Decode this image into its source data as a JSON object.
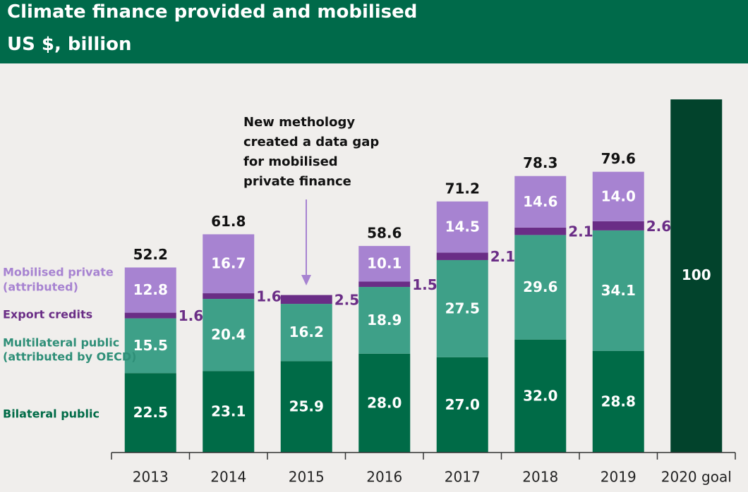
{
  "header": {
    "title": "Climate finance provided and mobilised",
    "subtitle": "US $, billion"
  },
  "annotation": {
    "lines": [
      "New methology",
      "created a data gap",
      "for mobilised",
      "private finance"
    ]
  },
  "colors": {
    "bilateral": "#006b47",
    "multilateral": "#3ea088",
    "export": "#6a2d86",
    "private": "#a783d1",
    "goal": "#02432c",
    "export_label": "#6a2d86",
    "private_legend": "#a783d1",
    "multilateral_legend": "#2f8f78",
    "bilateral_legend": "#006b47"
  },
  "chart_data": {
    "type": "bar",
    "stacked": true,
    "categories": [
      "2013",
      "2014",
      "2015",
      "2016",
      "2017",
      "2018",
      "2019",
      "2020 goal"
    ],
    "series": [
      {
        "name": "Bilateral public",
        "key": "bilateral",
        "values": [
          22.5,
          23.1,
          25.9,
          28.0,
          27.0,
          32.0,
          28.8,
          null
        ]
      },
      {
        "name": "Multilateral public (attributed by OECD)",
        "key": "multilateral",
        "values": [
          15.5,
          20.4,
          16.2,
          18.9,
          27.5,
          29.6,
          34.1,
          null
        ]
      },
      {
        "name": "Export credits",
        "key": "export",
        "values": [
          1.6,
          1.6,
          2.5,
          1.5,
          2.1,
          2.1,
          2.6,
          null
        ]
      },
      {
        "name": "Mobilised private (attributed)",
        "key": "private",
        "values": [
          12.8,
          16.7,
          null,
          10.1,
          14.5,
          14.6,
          14.0,
          null
        ]
      }
    ],
    "goal": {
      "category": "2020 goal",
      "value": 100
    },
    "totals": [
      52.2,
      61.8,
      null,
      58.6,
      71.2,
      78.3,
      79.6,
      null
    ],
    "value_labels": {
      "bilateral": [
        "22.5",
        "23.1",
        "25.9",
        "28.0",
        "27.0",
        "32.0",
        "28.8"
      ],
      "multilateral": [
        "15.5",
        "20.4",
        "16.2",
        "18.9",
        "27.5",
        "29.6",
        "34.1"
      ],
      "export": [
        "1.6",
        "1.6",
        "2.5",
        "1.5",
        "2.1",
        "2.1",
        "2.6"
      ],
      "private": [
        "12.8",
        "16.7",
        "",
        "10.1",
        "14.5",
        "14.6",
        "14.0"
      ],
      "totals": [
        "52.2",
        "61.8",
        "",
        "58.6",
        "71.2",
        "78.3",
        "79.6"
      ],
      "goal": "100"
    },
    "legend": [
      {
        "lines": [
          "Mobilised private",
          "(attributed)"
        ],
        "key": "private"
      },
      {
        "lines": [
          "Export credits"
        ],
        "key": "export"
      },
      {
        "lines": [
          "Multilateral public",
          "(attributed by OECD)"
        ],
        "key": "multilateral"
      },
      {
        "lines": [
          "Bilateral public"
        ],
        "key": "bilateral"
      }
    ],
    "legend_position": "left",
    "ylim": [
      0,
      100
    ],
    "grid": false
  }
}
